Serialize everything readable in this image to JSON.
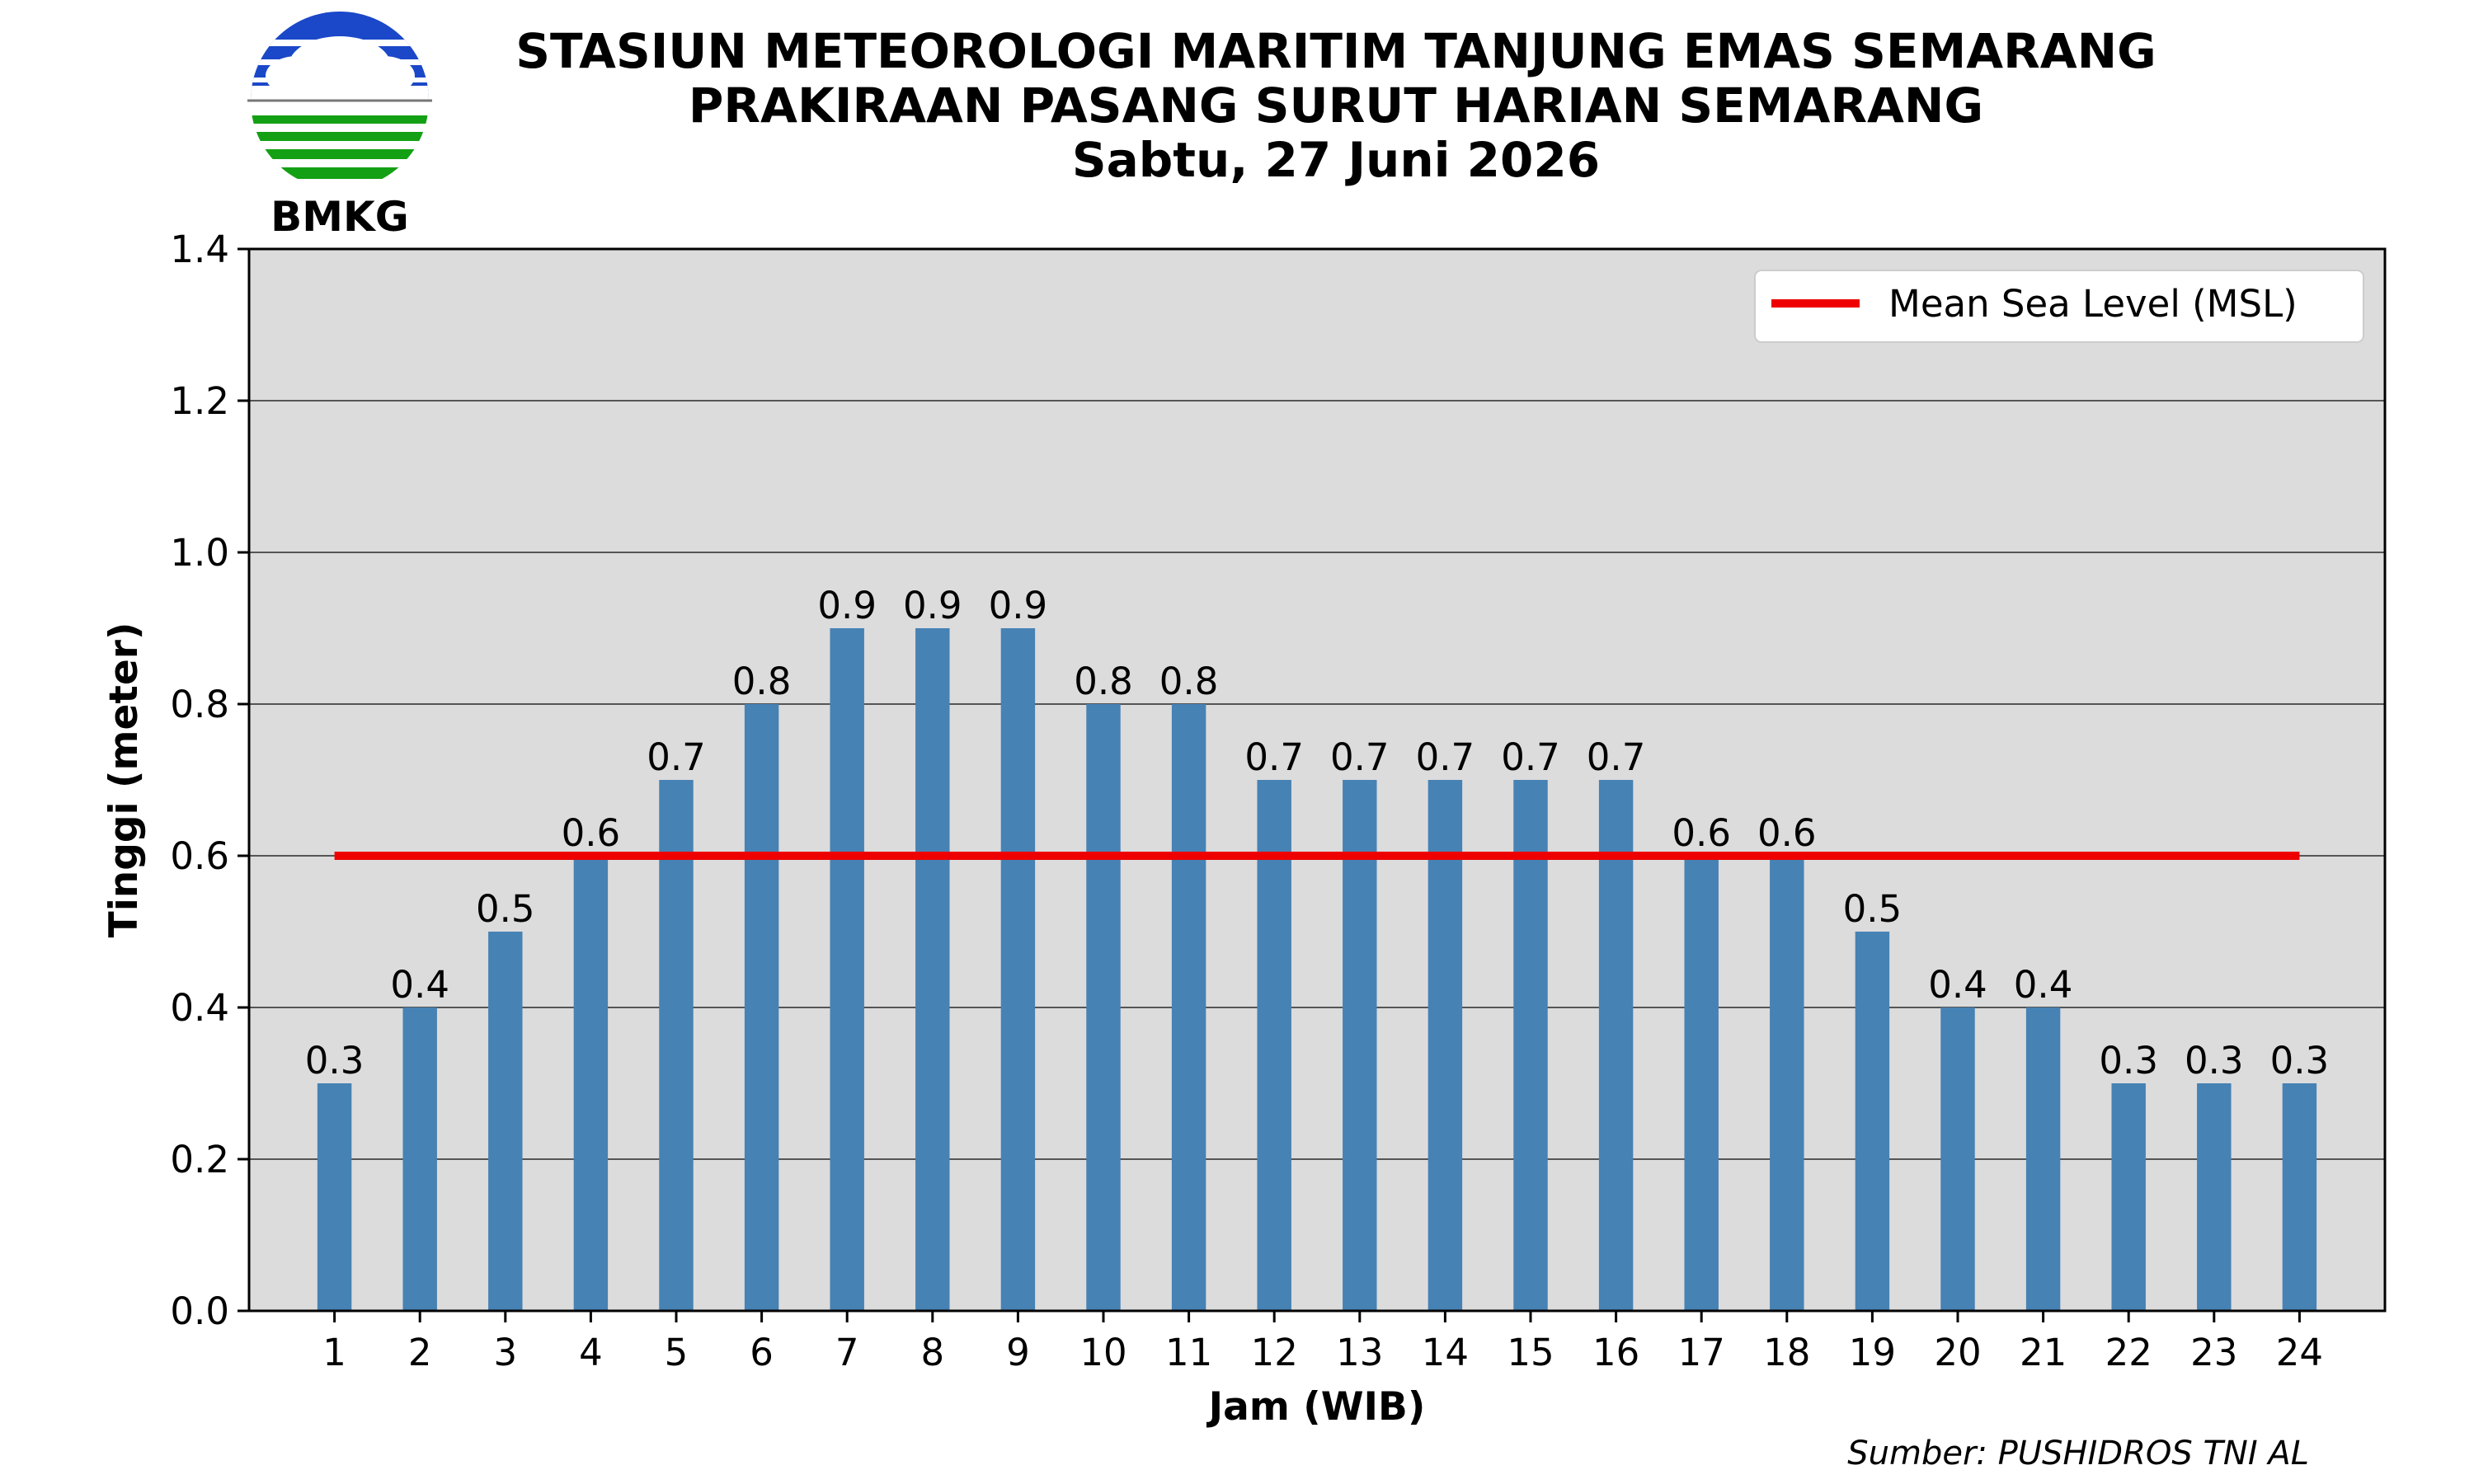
{
  "header": {
    "logo_text": "BMKG",
    "title_line1": "STASIUN METEOROLOGI MARITIM TANJUNG EMAS SEMARANG",
    "title_line2": "PRAKIRAAN PASANG SURUT HARIAN SEMARANG",
    "title_line3": "Sabtu, 27 Juni 2026"
  },
  "footer": {
    "source": "Sumber: PUSHIDROS TNI AL"
  },
  "colors": {
    "bar": "#4682b4",
    "msl_line": "#ee0000",
    "plot_background": "#dcdcdc",
    "grid": "#555555",
    "logo_blue": "#1a48c8",
    "logo_green": "#14a014"
  },
  "chart_data": {
    "type": "bar",
    "xlabel": "Jam (WIB)",
    "ylabel": "Tinggi (meter)",
    "ylim": [
      0,
      1.4
    ],
    "yticks": [
      0.0,
      0.2,
      0.4,
      0.6,
      0.8,
      1.0,
      1.2,
      1.4
    ],
    "ytick_labels": [
      "0.0",
      "0.2",
      "0.4",
      "0.6",
      "0.8",
      "1.0",
      "1.2",
      "1.4"
    ],
    "categories": [
      "1",
      "2",
      "3",
      "4",
      "5",
      "6",
      "7",
      "8",
      "9",
      "10",
      "11",
      "12",
      "13",
      "14",
      "15",
      "16",
      "17",
      "18",
      "19",
      "20",
      "21",
      "22",
      "23",
      "24"
    ],
    "values": [
      0.3,
      0.4,
      0.5,
      0.6,
      0.7,
      0.8,
      0.9,
      0.9,
      0.9,
      0.8,
      0.8,
      0.7,
      0.7,
      0.7,
      0.7,
      0.7,
      0.6,
      0.6,
      0.5,
      0.4,
      0.4,
      0.3,
      0.3,
      0.3
    ],
    "value_labels": [
      "0.3",
      "0.4",
      "0.5",
      "0.6",
      "0.7",
      "0.8",
      "0.9",
      "0.9",
      "0.9",
      "0.8",
      "0.8",
      "0.7",
      "0.7",
      "0.7",
      "0.7",
      "0.7",
      "0.6",
      "0.6",
      "0.5",
      "0.4",
      "0.4",
      "0.3",
      "0.3",
      "0.3"
    ],
    "reference_line": {
      "name": "Mean Sea Level (MSL)",
      "value": 0.6
    },
    "grid": "horizontal",
    "legend_position": "top-right"
  }
}
